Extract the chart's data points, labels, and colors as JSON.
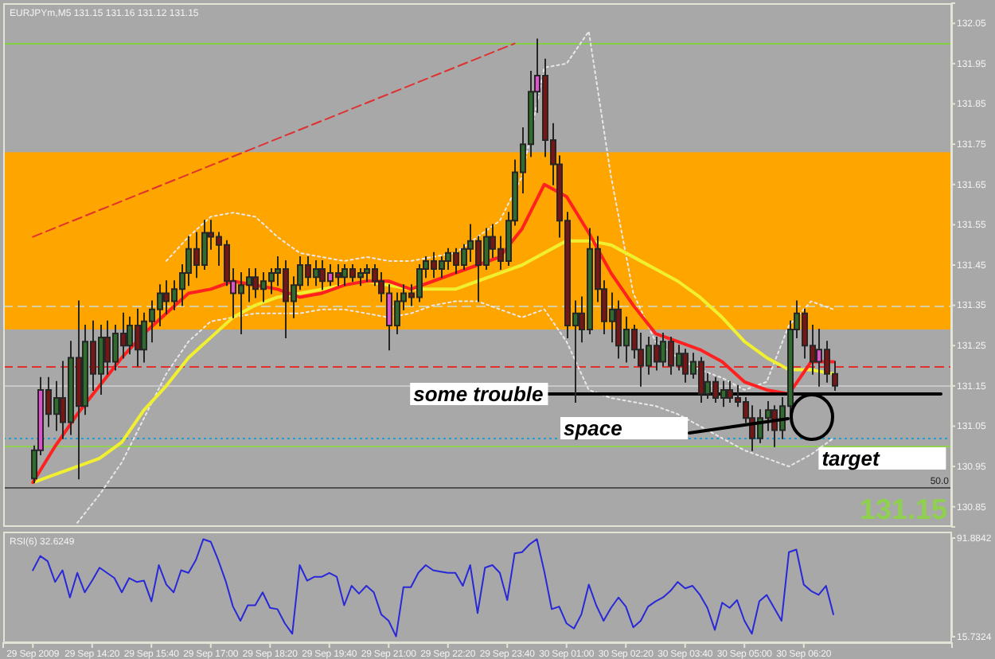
{
  "chart_data": [
    {
      "type": "candlestick",
      "title": "EURJPYm,M5 131.15 131.16 131.12 131.15",
      "x": [
        "2009-09-29T13:00",
        "2009-09-29T13:10",
        "2009-09-29T13:20",
        "2009-09-29T13:30",
        "2009-09-29T13:40",
        "2009-09-29T13:50",
        "2009-09-29T14:00",
        "2009-09-29T14:10",
        "2009-09-29T14:20",
        "2009-09-29T14:30",
        "2009-09-29T14:40",
        "2009-09-29T14:50",
        "2009-09-29T15:00",
        "2009-09-29T15:10",
        "2009-09-29T15:20",
        "2009-09-29T15:30",
        "2009-09-29T15:40",
        "2009-09-29T15:50",
        "2009-09-29T16:00",
        "2009-09-29T16:10",
        "2009-09-29T16:20",
        "2009-09-29T16:30",
        "2009-09-29T16:40",
        "2009-09-29T16:50",
        "2009-09-29T17:00",
        "2009-09-29T17:10",
        "2009-09-29T17:20",
        "2009-09-29T17:30",
        "2009-09-29T17:40",
        "2009-09-29T17:50",
        "2009-09-29T18:00",
        "2009-09-29T18:10",
        "2009-09-29T18:20",
        "2009-09-29T18:30",
        "2009-09-29T18:40",
        "2009-09-29T18:50",
        "2009-09-29T19:00",
        "2009-09-29T19:10",
        "2009-09-29T19:20",
        "2009-09-29T19:30",
        "2009-09-29T19:40",
        "2009-09-29T19:50",
        "2009-09-29T20:00",
        "2009-09-29T20:10",
        "2009-09-29T20:20",
        "2009-09-29T20:30",
        "2009-09-29T20:40",
        "2009-09-29T20:50",
        "2009-09-29T21:00",
        "2009-09-29T21:10",
        "2009-09-29T21:20",
        "2009-09-29T21:30",
        "2009-09-29T21:40",
        "2009-09-29T21:50",
        "2009-09-29T22:00",
        "2009-09-29T22:10",
        "2009-09-29T22:20",
        "2009-09-29T22:30",
        "2009-09-29T22:40",
        "2009-09-29T22:50",
        "2009-09-29T23:00",
        "2009-09-29T23:10",
        "2009-09-29T23:20",
        "2009-09-29T23:30",
        "2009-09-29T23:40",
        "2009-09-29T23:50",
        "2009-09-30T00:00",
        "2009-09-30T00:10",
        "2009-09-30T00:20",
        "2009-09-30T00:30",
        "2009-09-30T00:40",
        "2009-09-30T00:50",
        "2009-09-30T01:00",
        "2009-09-30T01:10",
        "2009-09-30T01:20",
        "2009-09-30T01:30",
        "2009-09-30T01:40",
        "2009-09-30T01:50",
        "2009-09-30T02:00",
        "2009-09-30T02:10",
        "2009-09-30T02:20",
        "2009-09-30T02:30",
        "2009-09-30T02:40",
        "2009-09-30T02:50",
        "2009-09-30T03:00",
        "2009-09-30T03:10",
        "2009-09-30T03:20",
        "2009-09-30T03:30",
        "2009-09-30T03:40",
        "2009-09-30T03:50",
        "2009-09-30T04:00",
        "2009-09-30T04:10",
        "2009-09-30T04:20",
        "2009-09-30T04:30",
        "2009-09-30T04:40",
        "2009-09-30T04:50",
        "2009-09-30T05:00",
        "2009-09-30T05:10",
        "2009-09-30T05:20",
        "2009-09-30T05:30",
        "2009-09-30T05:40",
        "2009-09-30T05:50",
        "2009-09-30T06:00",
        "2009-09-30T06:10",
        "2009-09-30T06:20",
        "2009-09-30T06:30",
        "2009-09-30T06:40",
        "2009-09-30T06:50",
        "2009-09-30T07:00"
      ],
      "ohlc": [
        [
          130.92,
          131.0,
          130.91,
          130.99
        ],
        [
          130.99,
          131.17,
          130.98,
          131.14
        ],
        [
          131.14,
          131.17,
          131.05,
          131.08
        ],
        [
          131.08,
          131.16,
          131.04,
          131.12
        ],
        [
          131.12,
          131.21,
          131.02,
          131.06
        ],
        [
          131.06,
          131.26,
          131.03,
          131.22
        ],
        [
          131.22,
          131.36,
          130.92,
          131.1
        ],
        [
          131.1,
          131.3,
          131.08,
          131.26
        ],
        [
          131.26,
          131.31,
          131.14,
          131.18
        ],
        [
          131.18,
          131.3,
          131.13,
          131.27
        ],
        [
          131.27,
          131.31,
          131.18,
          131.21
        ],
        [
          131.21,
          131.3,
          131.19,
          131.28
        ],
        [
          131.28,
          131.33,
          131.22,
          131.25
        ],
        [
          131.25,
          131.32,
          131.23,
          131.3
        ],
        [
          131.3,
          131.34,
          131.2,
          131.24
        ],
        [
          131.24,
          131.33,
          131.21,
          131.31
        ],
        [
          131.31,
          131.36,
          131.26,
          131.34
        ],
        [
          131.34,
          131.4,
          131.3,
          131.38
        ],
        [
          131.38,
          131.41,
          131.33,
          131.36
        ],
        [
          131.36,
          131.41,
          131.34,
          131.39
        ],
        [
          131.39,
          131.45,
          131.35,
          131.43
        ],
        [
          131.43,
          131.52,
          131.4,
          131.49
        ],
        [
          131.49,
          131.53,
          131.42,
          131.45
        ],
        [
          131.45,
          131.56,
          131.44,
          131.53
        ],
        [
          131.53,
          131.56,
          131.49,
          131.52
        ],
        [
          131.52,
          131.53,
          131.45,
          131.5
        ],
        [
          131.5,
          131.51,
          131.4,
          131.41
        ],
        [
          131.41,
          131.44,
          131.32,
          131.38
        ],
        [
          131.38,
          131.43,
          131.28,
          131.4
        ],
        [
          131.4,
          131.44,
          131.36,
          131.42
        ],
        [
          131.42,
          131.44,
          131.37,
          131.39
        ],
        [
          131.39,
          131.43,
          131.36,
          131.41
        ],
        [
          131.41,
          131.44,
          131.38,
          131.43
        ],
        [
          131.43,
          131.47,
          131.4,
          131.44
        ],
        [
          131.44,
          131.46,
          131.27,
          131.36
        ],
        [
          131.36,
          131.42,
          131.32,
          131.4
        ],
        [
          131.4,
          131.47,
          131.39,
          131.45
        ],
        [
          131.45,
          131.47,
          131.4,
          131.42
        ],
        [
          131.42,
          131.46,
          131.4,
          131.44
        ],
        [
          131.44,
          131.46,
          131.39,
          131.41
        ],
        [
          131.41,
          131.45,
          131.4,
          131.43
        ],
        [
          131.43,
          131.45,
          131.4,
          131.42
        ],
        [
          131.42,
          131.45,
          131.4,
          131.44
        ],
        [
          131.44,
          131.45,
          131.41,
          131.42
        ],
        [
          131.42,
          131.44,
          131.4,
          131.43
        ],
        [
          131.43,
          131.45,
          131.41,
          131.44
        ],
        [
          131.44,
          131.45,
          131.4,
          131.41
        ],
        [
          131.41,
          131.43,
          131.36,
          131.38
        ],
        [
          131.38,
          131.4,
          131.24,
          131.3
        ],
        [
          131.3,
          131.38,
          131.28,
          131.36
        ],
        [
          131.36,
          131.4,
          131.34,
          131.38
        ],
        [
          131.38,
          131.4,
          131.35,
          131.37
        ],
        [
          131.37,
          131.45,
          131.36,
          131.44
        ],
        [
          131.44,
          131.47,
          131.42,
          131.46
        ],
        [
          131.46,
          131.48,
          131.42,
          131.44
        ],
        [
          131.44,
          131.47,
          131.42,
          131.46
        ],
        [
          131.46,
          131.49,
          131.44,
          131.48
        ],
        [
          131.48,
          131.49,
          131.43,
          131.45
        ],
        [
          131.45,
          131.5,
          131.44,
          131.49
        ],
        [
          131.49,
          131.55,
          131.46,
          131.51
        ],
        [
          131.51,
          131.52,
          131.36,
          131.45
        ],
        [
          131.45,
          131.54,
          131.44,
          131.52
        ],
        [
          131.52,
          131.55,
          131.47,
          131.49
        ],
        [
          131.49,
          131.52,
          131.44,
          131.46
        ],
        [
          131.46,
          131.58,
          131.45,
          131.56
        ],
        [
          131.56,
          131.71,
          131.55,
          131.68
        ],
        [
          131.68,
          131.79,
          131.63,
          131.75
        ],
        [
          131.75,
          131.93,
          131.72,
          131.88
        ],
        [
          131.88,
          132.01,
          131.83,
          131.92
        ],
        [
          131.92,
          131.96,
          131.72,
          131.76
        ],
        [
          131.76,
          131.8,
          131.65,
          131.7
        ],
        [
          131.7,
          131.72,
          131.52,
          131.56
        ],
        [
          131.56,
          131.58,
          131.27,
          131.3
        ],
        [
          131.3,
          131.36,
          131.11,
          131.33
        ],
        [
          131.33,
          131.37,
          131.26,
          131.29
        ],
        [
          131.29,
          131.54,
          131.28,
          131.49
        ],
        [
          131.49,
          131.52,
          131.36,
          131.39
        ],
        [
          131.39,
          131.41,
          131.28,
          131.31
        ],
        [
          131.31,
          131.38,
          131.26,
          131.34
        ],
        [
          131.34,
          131.36,
          131.22,
          131.25
        ],
        [
          131.25,
          131.32,
          131.21,
          131.29
        ],
        [
          131.29,
          131.3,
          131.22,
          131.24
        ],
        [
          131.24,
          131.28,
          131.15,
          131.2
        ],
        [
          131.2,
          131.27,
          131.18,
          131.25
        ],
        [
          131.25,
          131.27,
          131.19,
          131.21
        ],
        [
          131.21,
          131.28,
          131.2,
          131.26
        ],
        [
          131.26,
          131.27,
          131.18,
          131.2
        ],
        [
          131.2,
          131.25,
          131.19,
          131.23
        ],
        [
          131.23,
          131.24,
          131.16,
          131.18
        ],
        [
          131.18,
          131.23,
          131.17,
          131.21
        ],
        [
          131.21,
          131.22,
          131.11,
          131.13
        ],
        [
          131.13,
          131.18,
          131.12,
          131.16
        ],
        [
          131.16,
          131.17,
          131.11,
          131.12
        ],
        [
          131.12,
          131.16,
          131.1,
          131.14
        ],
        [
          131.14,
          131.16,
          131.11,
          131.12
        ],
        [
          131.12,
          131.15,
          131.1,
          131.11
        ],
        [
          131.11,
          131.12,
          131.06,
          131.07
        ],
        [
          131.07,
          131.1,
          130.99,
          131.02
        ],
        [
          131.02,
          131.09,
          131.01,
          131.07
        ],
        [
          131.07,
          131.11,
          131.04,
          131.09
        ],
        [
          131.09,
          131.1,
          131.0,
          131.04
        ],
        [
          131.04,
          131.12,
          131.02,
          131.1
        ],
        [
          131.1,
          131.31,
          131.08,
          131.29
        ],
        [
          131.29,
          131.36,
          131.27,
          131.33
        ],
        [
          131.33,
          131.34,
          131.22,
          131.25
        ],
        [
          131.25,
          131.3,
          131.18,
          131.21
        ],
        [
          131.21,
          131.29,
          131.15,
          131.24
        ],
        [
          131.24,
          131.26,
          131.16,
          131.18
        ],
        [
          131.18,
          131.21,
          131.14,
          131.15
        ]
      ],
      "colors": [
        "#2d6e2d",
        "#e050d0",
        "#7d1414",
        "#2d6e2d",
        "#7d1414",
        "#2d6e2d",
        "#7d1414",
        "#2d6e2d",
        "#7d1414",
        "#2d6e2d",
        "#7d1414",
        "#2d6e2d",
        "#7d1414",
        "#2d6e2d",
        "#7d1414",
        "#2d6e2d",
        "#2d6e2d",
        "#2d6e2d",
        "#7d1414",
        "#2d6e2d",
        "#2d6e2d",
        "#2d6e2d",
        "#7d1414",
        "#2d6e2d",
        "#7d1414",
        "#7d1414",
        "#7d1414",
        "#e050d0",
        "#2d6e2d",
        "#2d6e2d",
        "#7d1414",
        "#2d6e2d",
        "#2d6e2d",
        "#2d6e2d",
        "#7d1414",
        "#2d6e2d",
        "#2d6e2d",
        "#7d1414",
        "#2d6e2d",
        "#7d1414",
        "#e050d0",
        "#7d1414",
        "#2d6e2d",
        "#7d1414",
        "#2d6e2d",
        "#2d6e2d",
        "#7d1414",
        "#7d1414",
        "#e050d0",
        "#2d6e2d",
        "#2d6e2d",
        "#7d1414",
        "#2d6e2d",
        "#2d6e2d",
        "#7d1414",
        "#2d6e2d",
        "#2d6e2d",
        "#7d1414",
        "#2d6e2d",
        "#2d6e2d",
        "#7d1414",
        "#2d6e2d",
        "#7d1414",
        "#7d1414",
        "#2d6e2d",
        "#2d6e2d",
        "#2d6e2d",
        "#2d6e2d",
        "#e050d0",
        "#7d1414",
        "#7d1414",
        "#7d1414",
        "#7d1414",
        "#2d6e2d",
        "#7d1414",
        "#2d6e2d",
        "#7d1414",
        "#7d1414",
        "#2d6e2d",
        "#7d1414",
        "#2d6e2d",
        "#7d1414",
        "#7d1414",
        "#2d6e2d",
        "#7d1414",
        "#2d6e2d",
        "#7d1414",
        "#2d6e2d",
        "#7d1414",
        "#2d6e2d",
        "#7d1414",
        "#2d6e2d",
        "#7d1414",
        "#2d6e2d",
        "#7d1414",
        "#7d1414",
        "#7d1414",
        "#7d1414",
        "#2d6e2d",
        "#2d6e2d",
        "#7d1414",
        "#2d6e2d",
        "#2d6e2d",
        "#2d6e2d",
        "#7d1414",
        "#7d1414",
        "#e050d0",
        "#7d1414",
        "#7d1414"
      ],
      "series": [
        {
          "type": "line",
          "color": "#e8e8e8",
          "line_style": "dotted",
          "x": [
            "2009-09-29T16:00",
            "2009-09-29T16:30",
            "2009-09-29T17:00",
            "2009-09-29T17:30",
            "2009-09-29T18:00",
            "2009-09-29T18:30",
            "2009-09-29T19:00",
            "2009-09-29T19:30",
            "2009-09-29T20:00",
            "2009-09-29T20:30",
            "2009-09-29T21:00",
            "2009-09-29T21:30",
            "2009-09-29T22:00",
            "2009-09-29T22:30",
            "2009-09-29T23:00",
            "2009-09-29T23:30",
            "2009-09-30T00:00",
            "2009-09-30T00:30",
            "2009-09-30T01:00",
            "2009-09-30T01:30",
            "2009-09-30T02:00",
            "2009-09-30T02:30",
            "2009-09-30T03:00",
            "2009-09-30T03:30",
            "2009-09-30T04:00",
            "2009-09-30T04:30",
            "2009-09-30T05:00",
            "2009-09-30T05:30",
            "2009-09-30T06:00",
            "2009-09-30T06:30",
            "2009-09-30T07:00"
          ],
          "values": [
            131.46,
            131.52,
            131.57,
            131.58,
            131.57,
            131.52,
            131.48,
            131.47,
            131.46,
            131.47,
            131.46,
            131.46,
            131.47,
            131.48,
            131.52,
            131.56,
            131.67,
            131.94,
            131.95,
            132.03,
            131.67,
            131.38,
            131.26,
            131.22,
            131.19,
            131.17,
            131.14,
            131.16,
            131.3,
            131.36,
            131.34
          ]
        },
        {
          "type": "line",
          "color": "#e8e8e8",
          "line_style": "dotted",
          "x": [
            "2009-09-29T14:00",
            "2009-09-29T14:30",
            "2009-09-29T15:00",
            "2009-09-29T15:30",
            "2009-09-29T16:00",
            "2009-09-29T16:30",
            "2009-09-29T17:00",
            "2009-09-29T17:30",
            "2009-09-29T18:00",
            "2009-09-29T18:30",
            "2009-09-29T19:00",
            "2009-09-29T19:30",
            "2009-09-29T20:00",
            "2009-09-29T20:30",
            "2009-09-29T21:00",
            "2009-09-29T21:30",
            "2009-09-29T22:00",
            "2009-09-29T22:30",
            "2009-09-29T23:00",
            "2009-09-29T23:30",
            "2009-09-30T00:00",
            "2009-09-30T00:30",
            "2009-09-30T01:00",
            "2009-09-30T01:30",
            "2009-09-30T02:00",
            "2009-09-30T02:30",
            "2009-09-30T03:00",
            "2009-09-30T03:30",
            "2009-09-30T04:00",
            "2009-09-30T04:30",
            "2009-09-30T05:00",
            "2009-09-30T05:30",
            "2009-09-30T06:00",
            "2009-09-30T06:30",
            "2009-09-30T07:00"
          ],
          "values": [
            130.81,
            130.88,
            130.96,
            131.07,
            131.18,
            131.26,
            131.31,
            131.32,
            131.33,
            131.33,
            131.33,
            131.34,
            131.34,
            131.33,
            131.32,
            131.33,
            131.35,
            131.36,
            131.36,
            131.34,
            131.32,
            131.34,
            131.26,
            131.14,
            131.12,
            131.11,
            131.1,
            131.08,
            131.05,
            131.02,
            130.99,
            130.97,
            130.95,
            130.98,
            131.02
          ]
        },
        {
          "type": "line",
          "color": "#f0f030",
          "line_style": "solid",
          "x": [
            "2009-09-29T13:00",
            "2009-09-29T13:30",
            "2009-09-29T14:00",
            "2009-09-29T14:30",
            "2009-09-29T15:00",
            "2009-09-29T15:30",
            "2009-09-29T16:00",
            "2009-09-29T16:30",
            "2009-09-29T17:00",
            "2009-09-29T17:30",
            "2009-09-29T18:00",
            "2009-09-29T18:30",
            "2009-09-29T19:00",
            "2009-09-29T19:30",
            "2009-09-29T20:00",
            "2009-09-29T20:30",
            "2009-09-29T21:00",
            "2009-09-29T21:30",
            "2009-09-29T22:00",
            "2009-09-29T22:30",
            "2009-09-29T23:00",
            "2009-09-29T23:30",
            "2009-09-30T00:00",
            "2009-09-30T00:30",
            "2009-09-30T01:00",
            "2009-09-30T01:30",
            "2009-09-30T02:00",
            "2009-09-30T02:30",
            "2009-09-30T03:00",
            "2009-09-30T03:30",
            "2009-09-30T04:00",
            "2009-09-30T04:30",
            "2009-09-30T05:00",
            "2009-09-30T05:30",
            "2009-09-30T06:00",
            "2009-09-30T06:30",
            "2009-09-30T07:00"
          ],
          "values": [
            130.91,
            130.93,
            130.95,
            130.97,
            131.01,
            131.09,
            131.15,
            131.22,
            131.27,
            131.32,
            131.35,
            131.37,
            131.38,
            131.39,
            131.4,
            131.41,
            131.4,
            131.39,
            131.39,
            131.39,
            131.41,
            131.43,
            131.45,
            131.48,
            131.51,
            131.51,
            131.5,
            131.47,
            131.44,
            131.41,
            131.37,
            131.32,
            131.26,
            131.22,
            131.19,
            131.19,
            131.18
          ]
        },
        {
          "type": "line",
          "color": "#ff2020",
          "line_style": "solid",
          "x": [
            "2009-09-29T13:00",
            "2009-09-29T13:30",
            "2009-09-29T14:00",
            "2009-09-29T14:30",
            "2009-09-29T15:00",
            "2009-09-29T15:30",
            "2009-09-29T16:00",
            "2009-09-29T16:30",
            "2009-09-29T17:00",
            "2009-09-29T17:30",
            "2009-09-29T18:00",
            "2009-09-29T18:30",
            "2009-09-29T19:00",
            "2009-09-29T19:30",
            "2009-09-29T20:00",
            "2009-09-29T20:30",
            "2009-09-29T21:00",
            "2009-09-29T21:30",
            "2009-09-29T22:00",
            "2009-09-29T22:30",
            "2009-09-29T23:00",
            "2009-09-29T23:30",
            "2009-09-30T00:00",
            "2009-09-30T00:30",
            "2009-09-30T01:00",
            "2009-09-30T01:30",
            "2009-09-30T02:00",
            "2009-09-30T02:30",
            "2009-09-30T03:00",
            "2009-09-30T03:30",
            "2009-09-30T04:00",
            "2009-09-30T04:30",
            "2009-09-30T05:00",
            "2009-09-30T05:30",
            "2009-09-30T06:00",
            "2009-09-30T06:30",
            "2009-09-30T07:00"
          ],
          "values": [
            130.91,
            131.0,
            131.08,
            131.15,
            131.22,
            131.28,
            131.33,
            131.38,
            131.39,
            131.41,
            131.4,
            131.39,
            131.37,
            131.38,
            131.4,
            131.41,
            131.41,
            131.39,
            131.41,
            131.43,
            131.45,
            131.47,
            131.54,
            131.65,
            131.62,
            131.53,
            131.43,
            131.35,
            131.28,
            131.26,
            131.24,
            131.21,
            131.16,
            131.14,
            131.13,
            131.21,
            131.21
          ]
        },
        {
          "type": "line",
          "color": "#e03030",
          "line_style": "dashed",
          "x": [
            "2009-09-29T13:00",
            "2009-09-29T23:50"
          ],
          "values": [
            131.52,
            132.0
          ]
        },
        {
          "type": "line",
          "color": "#000000",
          "line_style": "solid",
          "x": [
            "2009-09-30T00:35",
            "2009-09-30T09:25"
          ],
          "values": [
            131.13,
            131.13
          ]
        }
      ],
      "xlim": [
        "2009-09-29T12:20",
        "2009-09-30T09:40"
      ],
      "ylim": [
        130.8,
        132.1
      ],
      "yticks": [
        130.85,
        130.95,
        131.05,
        131.15,
        131.25,
        131.35,
        131.45,
        131.55,
        131.65,
        131.75,
        131.85,
        131.95,
        132.05
      ],
      "tick_labels": "y",
      "bands": [
        {
          "axis": "y",
          "from": 131.29,
          "to": 131.73,
          "color": "#ffa500"
        }
      ],
      "ref_lines": [
        {
          "axis": "y",
          "value": 132.0,
          "color": "#80d040"
        },
        {
          "axis": "y",
          "value": 131.35,
          "color": "#d8d0a0",
          "line_style": "dashed"
        },
        {
          "axis": "y",
          "value": 131.2,
          "color": "#e03030",
          "line_style": "dashed"
        },
        {
          "axis": "y",
          "value": 131.15,
          "color": "#c8c8c8"
        },
        {
          "axis": "y",
          "value": 131.02,
          "color": "#20a0d0",
          "line_style": "dotted"
        },
        {
          "axis": "y",
          "value": 131.0,
          "color": "#90d050"
        },
        {
          "axis": "y",
          "value": 130.9,
          "color": "#505050"
        }
      ],
      "annotations": [
        {
          "text": "some trouble",
          "x": "2009-09-30T00:35",
          "y": 131.13
        },
        {
          "text": "target",
          "x": "2009-09-30T06:40",
          "y": 130.97
        },
        {
          "text": "50.0",
          "x": "2009-09-30T09:40",
          "y": 130.9
        },
        "space",
        "131.15"
      ]
    },
    {
      "type": "line",
      "title": "RSI(6) 32.6249",
      "color": "#2828d8",
      "x": [
        "2009-09-29T13:00",
        "2009-09-29T13:10",
        "2009-09-29T13:20",
        "2009-09-29T13:30",
        "2009-09-29T13:40",
        "2009-09-29T13:50",
        "2009-09-29T14:00",
        "2009-09-29T14:10",
        "2009-09-29T14:20",
        "2009-09-29T14:30",
        "2009-09-29T14:40",
        "2009-09-29T14:50",
        "2009-09-29T15:00",
        "2009-09-29T15:10",
        "2009-09-29T15:20",
        "2009-09-29T15:30",
        "2009-09-29T15:40",
        "2009-09-29T15:50",
        "2009-09-29T16:00",
        "2009-09-29T16:10",
        "2009-09-29T16:20",
        "2009-09-29T16:30",
        "2009-09-29T16:40",
        "2009-09-29T16:50",
        "2009-09-29T17:00",
        "2009-09-29T17:10",
        "2009-09-29T17:20",
        "2009-09-29T17:30",
        "2009-09-29T17:40",
        "2009-09-29T17:50",
        "2009-09-29T18:00",
        "2009-09-29T18:10",
        "2009-09-29T18:20",
        "2009-09-29T18:30",
        "2009-09-29T18:40",
        "2009-09-29T18:50",
        "2009-09-29T19:00",
        "2009-09-29T19:10",
        "2009-09-29T19:20",
        "2009-09-29T19:30",
        "2009-09-29T19:40",
        "2009-09-29T19:50",
        "2009-09-29T20:00",
        "2009-09-29T20:10",
        "2009-09-29T20:20",
        "2009-09-29T20:30",
        "2009-09-29T20:40",
        "2009-09-29T20:50",
        "2009-09-29T21:00",
        "2009-09-29T21:10",
        "2009-09-29T21:20",
        "2009-09-29T21:30",
        "2009-09-29T21:40",
        "2009-09-29T21:50",
        "2009-09-29T22:00",
        "2009-09-29T22:10",
        "2009-09-29T22:20",
        "2009-09-29T22:30",
        "2009-09-29T22:40",
        "2009-09-29T22:50",
        "2009-09-29T23:00",
        "2009-09-29T23:10",
        "2009-09-29T23:20",
        "2009-09-29T23:30",
        "2009-09-29T23:40",
        "2009-09-29T23:50",
        "2009-09-30T00:00",
        "2009-09-30T00:10",
        "2009-09-30T00:20",
        "2009-09-30T00:30",
        "2009-09-30T00:40",
        "2009-09-30T00:50",
        "2009-09-30T01:00",
        "2009-09-30T01:10",
        "2009-09-30T01:20",
        "2009-09-30T01:30",
        "2009-09-30T01:40",
        "2009-09-30T01:50",
        "2009-09-30T02:00",
        "2009-09-30T02:10",
        "2009-09-30T02:20",
        "2009-09-30T02:30",
        "2009-09-30T02:40",
        "2009-09-30T02:50",
        "2009-09-30T03:00",
        "2009-09-30T03:10",
        "2009-09-30T03:20",
        "2009-09-30T03:30",
        "2009-09-30T03:40",
        "2009-09-30T03:50",
        "2009-09-30T04:00",
        "2009-09-30T04:10",
        "2009-09-30T04:20",
        "2009-09-30T04:30",
        "2009-09-30T04:40",
        "2009-09-30T04:50",
        "2009-09-30T05:00",
        "2009-09-30T05:10",
        "2009-09-30T05:20",
        "2009-09-30T05:30",
        "2009-09-30T05:40",
        "2009-09-30T05:50",
        "2009-09-30T06:00",
        "2009-09-30T06:10",
        "2009-09-30T06:20",
        "2009-09-30T06:30",
        "2009-09-30T06:40",
        "2009-09-30T06:50",
        "2009-09-30T07:00"
      ],
      "values": [
        67,
        78,
        74,
        58,
        67,
        46,
        65,
        50,
        59,
        69,
        65,
        61,
        50,
        61,
        58,
        59,
        43,
        71,
        56,
        50,
        67,
        65,
        75,
        91,
        89,
        75,
        59,
        39,
        28,
        40,
        40,
        50,
        38,
        37,
        26,
        18,
        71,
        59,
        62,
        62,
        65,
        62,
        40,
        55,
        49,
        55,
        50,
        33,
        28,
        16,
        54,
        54,
        65,
        71,
        67,
        66,
        65,
        65,
        55,
        71,
        34,
        69,
        71,
        65,
        44,
        80,
        81,
        87,
        91,
        66,
        37,
        39,
        26,
        22,
        33,
        56,
        40,
        28,
        38,
        46,
        39,
        23,
        28,
        39,
        43,
        46,
        51,
        58,
        53,
        55,
        48,
        38,
        21,
        42,
        38,
        44,
        28,
        18,
        43,
        48,
        38,
        28,
        81,
        83,
        56,
        51,
        48,
        55,
        33
      ],
      "xlim": [
        "2009-09-29T12:20",
        "2009-09-30T09:40"
      ],
      "xticks": [
        {
          "value": "2009-09-29T13:00",
          "label": "29 Sep 2009"
        },
        {
          "value": "2009-09-29T14:20",
          "label": "29 Sep 14:20"
        },
        {
          "value": "2009-09-29T15:40",
          "label": "29 Sep 15:40"
        },
        {
          "value": "2009-09-29T17:00",
          "label": "29 Sep 17:00"
        },
        {
          "value": "2009-09-29T18:20",
          "label": "29 Sep 18:20"
        },
        {
          "value": "2009-09-29T19:40",
          "label": "29 Sep 19:40"
        },
        {
          "value": "2009-09-29T21:00",
          "label": "29 Sep 21:00"
        },
        {
          "value": "2009-09-29T22:20",
          "label": "29 Sep 22:20"
        },
        {
          "value": "2009-09-29T23:40",
          "label": "29 Sep 23:40"
        },
        {
          "value": "2009-09-30T01:00",
          "label": "30 Sep 01:00"
        },
        {
          "value": "2009-09-30T02:20",
          "label": "30 Sep 02:20"
        },
        {
          "value": "2009-09-30T03:40",
          "label": "30 Sep 03:40"
        },
        {
          "value": "2009-09-30T05:00",
          "label": "30 Sep 05:00"
        },
        {
          "value": "2009-09-30T06:20",
          "label": "30 Sep 06:20"
        }
      ],
      "ylim": [
        15.7324,
        91.8842
      ],
      "yticks": [
        15.7324,
        91.8842
      ]
    }
  ]
}
